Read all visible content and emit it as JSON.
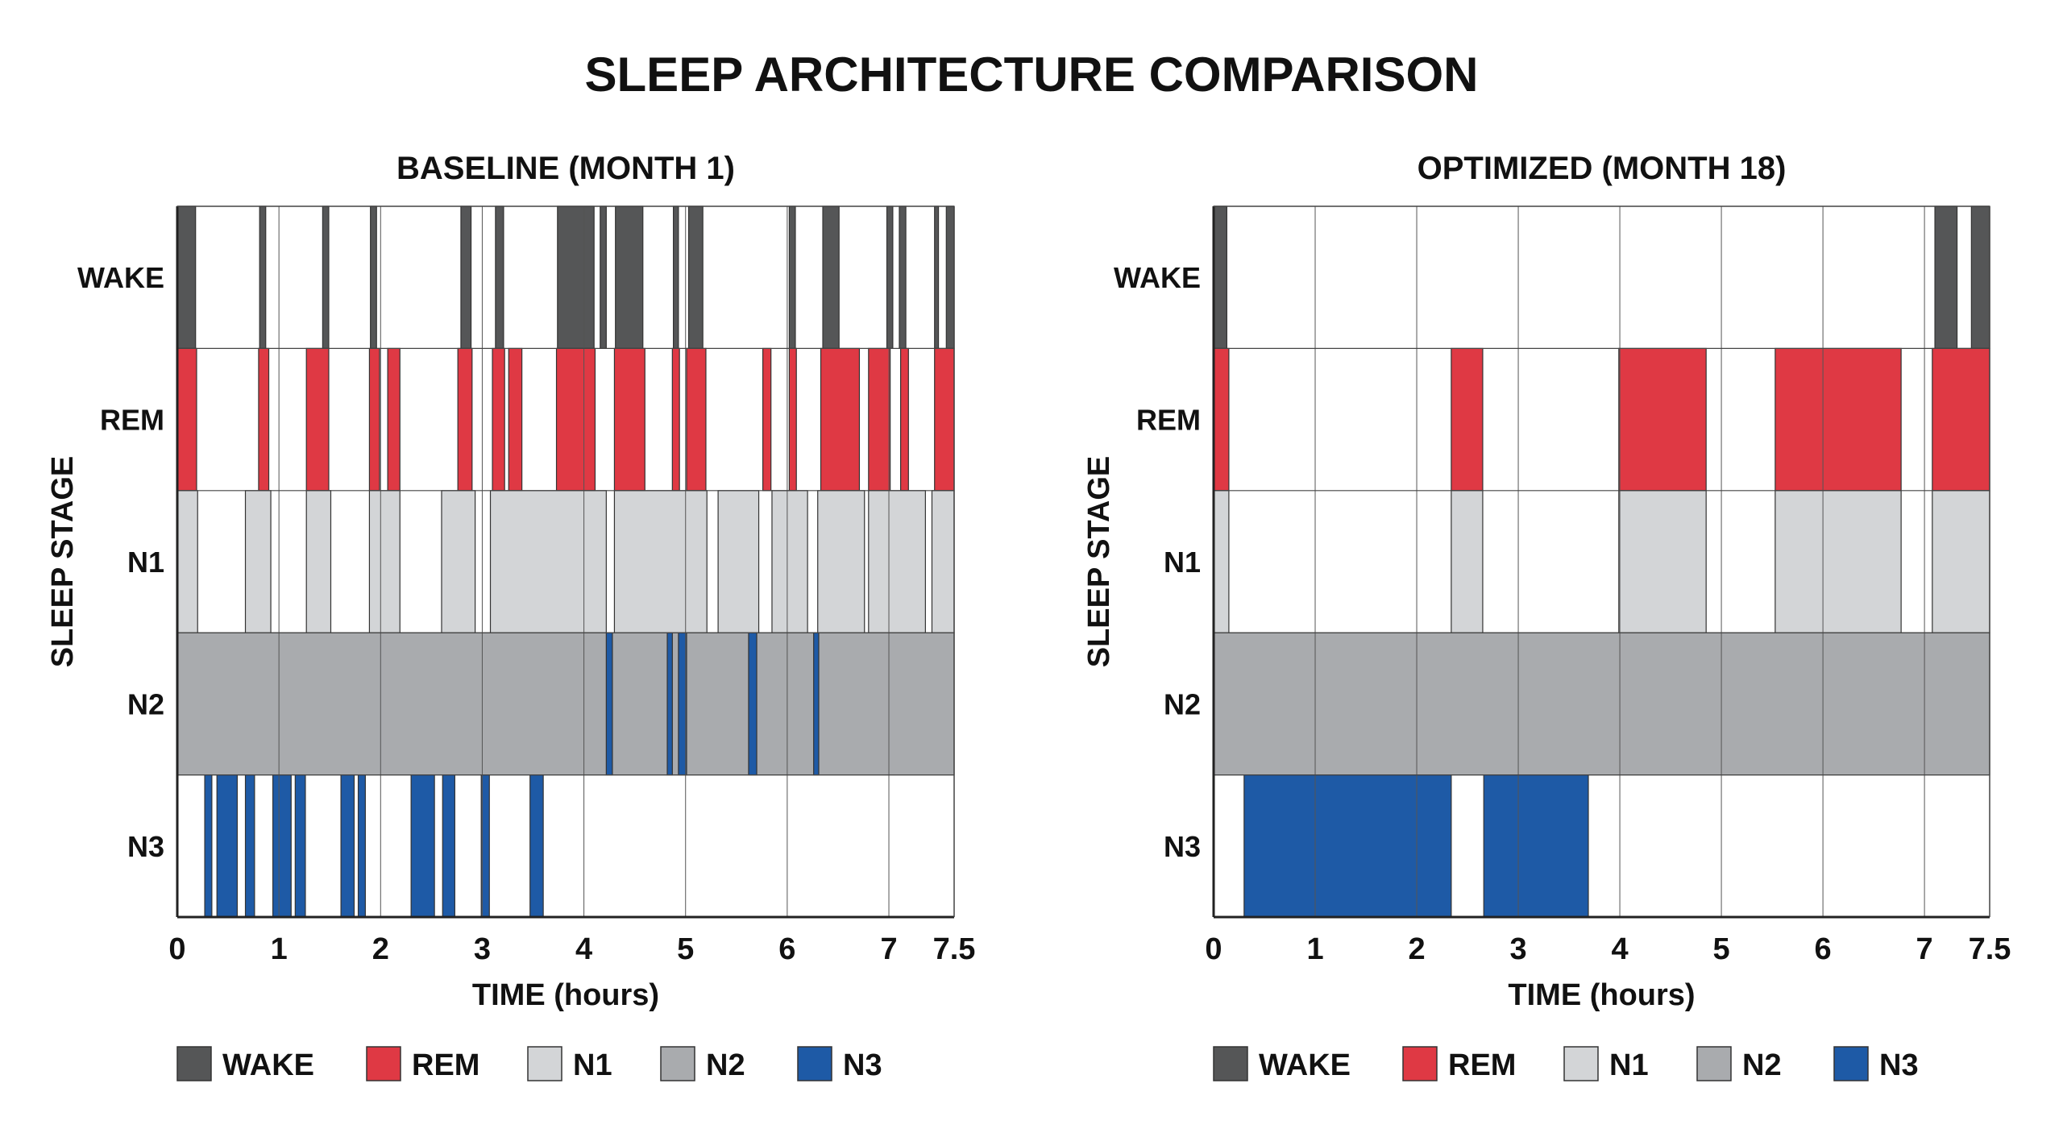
{
  "title": "SLEEP ARCHITECTURE COMPARISON",
  "colors": {
    "WAKE": "#555657",
    "REM": "#df3944",
    "N1": "#d3d5d7",
    "N2": "#a9abae",
    "N3": "#1e5aa6"
  },
  "chart_data": [
    {
      "type": "hypnogram",
      "title": "BASELINE (MONTH 1)",
      "xlabel": "TIME (hours)",
      "ylabel": "SLEEP STAGE",
      "xticks": [
        "0",
        "1",
        "2",
        "3",
        "4",
        "5",
        "6",
        "7",
        "7.5"
      ],
      "xlim": [
        0,
        7.5
      ],
      "stages": [
        "WAKE",
        "REM",
        "N1",
        "N2",
        "N3"
      ],
      "grid": true,
      "rows": [
        {
          "stage": "WAKE",
          "segments": [
            [
              0,
              0.18,
              "WAKE"
            ],
            [
              0.81,
              0.87,
              "WAKE"
            ],
            [
              1.43,
              1.49,
              "WAKE"
            ],
            [
              1.9,
              1.96,
              "WAKE"
            ],
            [
              2.79,
              2.89,
              "WAKE"
            ],
            [
              3.13,
              3.21,
              "WAKE"
            ],
            [
              3.74,
              4.1,
              "WAKE"
            ],
            [
              4.16,
              4.22,
              "WAKE"
            ],
            [
              4.31,
              4.58,
              "WAKE"
            ],
            [
              4.88,
              4.93,
              "WAKE"
            ],
            [
              5.03,
              5.17,
              "WAKE"
            ],
            [
              6.02,
              6.08,
              "WAKE"
            ],
            [
              6.35,
              6.51,
              "WAKE"
            ],
            [
              6.98,
              7.03,
              "WAKE"
            ],
            [
              7.08,
              7.13,
              "WAKE"
            ],
            [
              7.35,
              7.38,
              "WAKE"
            ],
            [
              7.44,
              7.5,
              "WAKE"
            ]
          ]
        },
        {
          "stage": "REM",
          "segments": [
            [
              0,
              0.19,
              "REM"
            ],
            [
              0.8,
              0.9,
              "REM"
            ],
            [
              1.27,
              1.49,
              "REM"
            ],
            [
              1.89,
              1.99,
              "REM"
            ],
            [
              2.07,
              2.19,
              "REM"
            ],
            [
              2.76,
              2.9,
              "REM"
            ],
            [
              3.1,
              3.22,
              "REM"
            ],
            [
              3.26,
              3.39,
              "REM"
            ],
            [
              3.73,
              4.11,
              "REM"
            ],
            [
              4.3,
              4.6,
              "REM"
            ],
            [
              4.87,
              4.94,
              "REM"
            ],
            [
              5.01,
              5.2,
              "REM"
            ],
            [
              5.76,
              5.84,
              "REM"
            ],
            [
              6.02,
              6.09,
              "REM"
            ],
            [
              6.33,
              6.71,
              "REM"
            ],
            [
              6.8,
              7.01,
              "REM"
            ],
            [
              7.09,
              7.15,
              "REM"
            ],
            [
              7.35,
              7.5,
              "REM"
            ]
          ]
        },
        {
          "stage": "N1",
          "segments": [
            [
              0,
              0.2,
              "N1"
            ],
            [
              0.67,
              0.92,
              "N1"
            ],
            [
              1.27,
              1.51,
              "N1"
            ],
            [
              1.89,
              2.19,
              "N1"
            ],
            [
              2.6,
              2.93,
              "N1"
            ],
            [
              3.08,
              4.22,
              "N1"
            ],
            [
              4.3,
              5.21,
              "N1"
            ],
            [
              5.32,
              5.72,
              "N1"
            ],
            [
              5.85,
              6.2,
              "N1"
            ],
            [
              6.3,
              6.76,
              "N1"
            ],
            [
              6.8,
              7.28,
              "N1"
            ],
            [
              7.33,
              7.5,
              "N1"
            ]
          ]
        },
        {
          "stage": "N2",
          "segments": [
            [
              0,
              7.5,
              "N2"
            ],
            [
              4.22,
              4.28,
              "N3"
            ],
            [
              4.82,
              4.87,
              "N3"
            ],
            [
              4.93,
              5.01,
              "N3"
            ],
            [
              5.62,
              5.7,
              "N3"
            ],
            [
              6.26,
              6.31,
              "N3"
            ]
          ]
        },
        {
          "stage": "N3",
          "segments": [
            [
              0.27,
              0.34,
              "N3"
            ],
            [
              0.39,
              0.59,
              "N3"
            ],
            [
              0.67,
              0.76,
              "N3"
            ],
            [
              0.94,
              1.12,
              "N3"
            ],
            [
              1.16,
              1.26,
              "N3"
            ],
            [
              1.61,
              1.74,
              "N3"
            ],
            [
              1.78,
              1.85,
              "N3"
            ],
            [
              2.3,
              2.53,
              "N3"
            ],
            [
              2.61,
              2.73,
              "N3"
            ],
            [
              2.99,
              3.07,
              "N3"
            ],
            [
              3.47,
              3.6,
              "N3"
            ]
          ]
        }
      ]
    },
    {
      "type": "hypnogram",
      "title": "OPTIMIZED (MONTH 18)",
      "xlabel": "TIME (hours)",
      "ylabel": "SLEEP STAGE",
      "xticks": [
        "0",
        "1",
        "2",
        "3",
        "4",
        "5",
        "6",
        "7",
        "7.5"
      ],
      "xlim": [
        0,
        7.5
      ],
      "stages": [
        "WAKE",
        "REM",
        "N1",
        "N2",
        "N3"
      ],
      "grid": true,
      "rows": [
        {
          "stage": "WAKE",
          "segments": [
            [
              0,
              0.13,
              "WAKE"
            ],
            [
              7.08,
              7.25,
              "WAKE"
            ],
            [
              7.36,
              7.5,
              "WAKE"
            ]
          ]
        },
        {
          "stage": "REM",
          "segments": [
            [
              0,
              0.15,
              "REM"
            ],
            [
              2.34,
              2.65,
              "REM"
            ],
            [
              3.99,
              4.85,
              "REM"
            ],
            [
              5.53,
              6.77,
              "REM"
            ],
            [
              7.06,
              7.5,
              "REM"
            ]
          ]
        },
        {
          "stage": "N1",
          "segments": [
            [
              0,
              0.15,
              "N1"
            ],
            [
              2.34,
              2.65,
              "N1"
            ],
            [
              3.99,
              4.85,
              "N1"
            ],
            [
              5.53,
              6.77,
              "N1"
            ],
            [
              7.06,
              7.5,
              "N1"
            ]
          ]
        },
        {
          "stage": "N2",
          "segments": [
            [
              0,
              7.5,
              "N2"
            ]
          ]
        },
        {
          "stage": "N3",
          "segments": [
            [
              0.3,
              2.34,
              "N3"
            ],
            [
              2.66,
              3.69,
              "N3"
            ]
          ]
        }
      ]
    }
  ],
  "legend": [
    "WAKE",
    "REM",
    "N1",
    "N2",
    "N3"
  ]
}
